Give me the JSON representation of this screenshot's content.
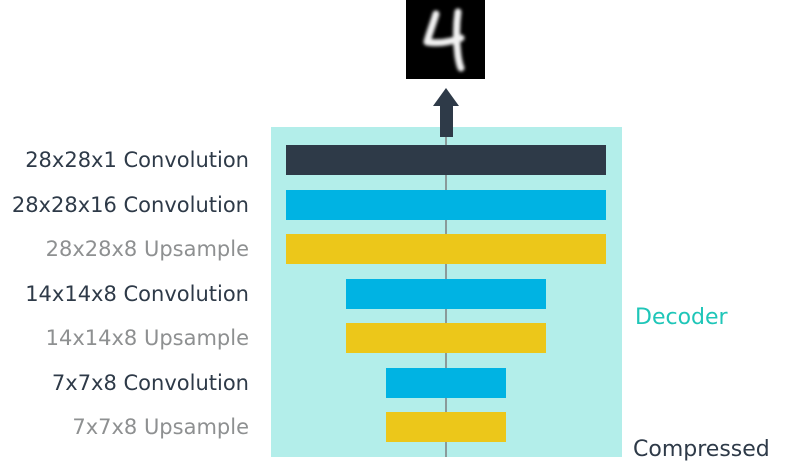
{
  "layers": [
    {
      "label": "28x28x1 Convolution",
      "kind": "convolution",
      "width_units": 320
    },
    {
      "label": "28x28x16 Convolution",
      "kind": "convolution",
      "width_units": 320
    },
    {
      "label": "28x28x8 Upsample",
      "kind": "upsample",
      "width_units": 320
    },
    {
      "label": "14x14x8 Convolution",
      "kind": "convolution",
      "width_units": 200
    },
    {
      "label": "14x14x8 Upsample",
      "kind": "upsample",
      "width_units": 200
    },
    {
      "label": "7x7x8 Convolution",
      "kind": "convolution",
      "width_units": 120
    },
    {
      "label": "7x7x8 Upsample",
      "kind": "upsample",
      "width_units": 120
    }
  ],
  "colors": {
    "output_layer": "#2e3a48",
    "convolution": "#00b3e3",
    "upsample": "#ecc71a",
    "panel": "#b3eeea",
    "decoder_text": "#1fc6b8"
  },
  "decoder_label": "Decoder",
  "partial_label": "Compressed",
  "output_image": {
    "digit": "4",
    "icon": "mnist-digit-4"
  }
}
